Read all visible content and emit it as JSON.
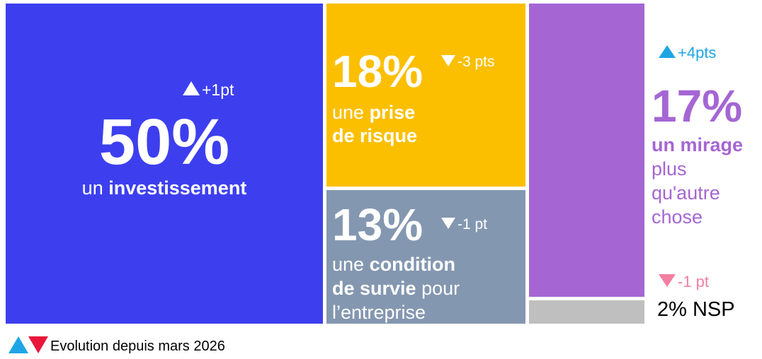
{
  "tiles": {
    "investissement": {
      "percent": "50%",
      "change": "+1pt",
      "lines": [
        [
          "un ",
          "investissement"
        ]
      ]
    },
    "prise": {
      "percent": "18%",
      "change": "-3 pts",
      "lines": [
        [
          "une ",
          "prise"
        ],
        [
          "de risque"
        ]
      ]
    },
    "condition": {
      "percent": "13%",
      "change": "-1 pt",
      "lines": [
        [
          "une ",
          "condition"
        ],
        [
          "de survie",
          " pour"
        ],
        [
          "l’entreprise"
        ]
      ]
    },
    "mirage": {
      "percent": "17%",
      "change": "+4pts",
      "lines": [
        [
          "un mirage"
        ],
        [
          "plus"
        ],
        [
          "qu'autre"
        ],
        [
          "chose"
        ]
      ]
    },
    "nsp": {
      "change": "-1 pt",
      "label": "2% NSP"
    }
  },
  "legend": "Evolution depuis mars 2026"
}
